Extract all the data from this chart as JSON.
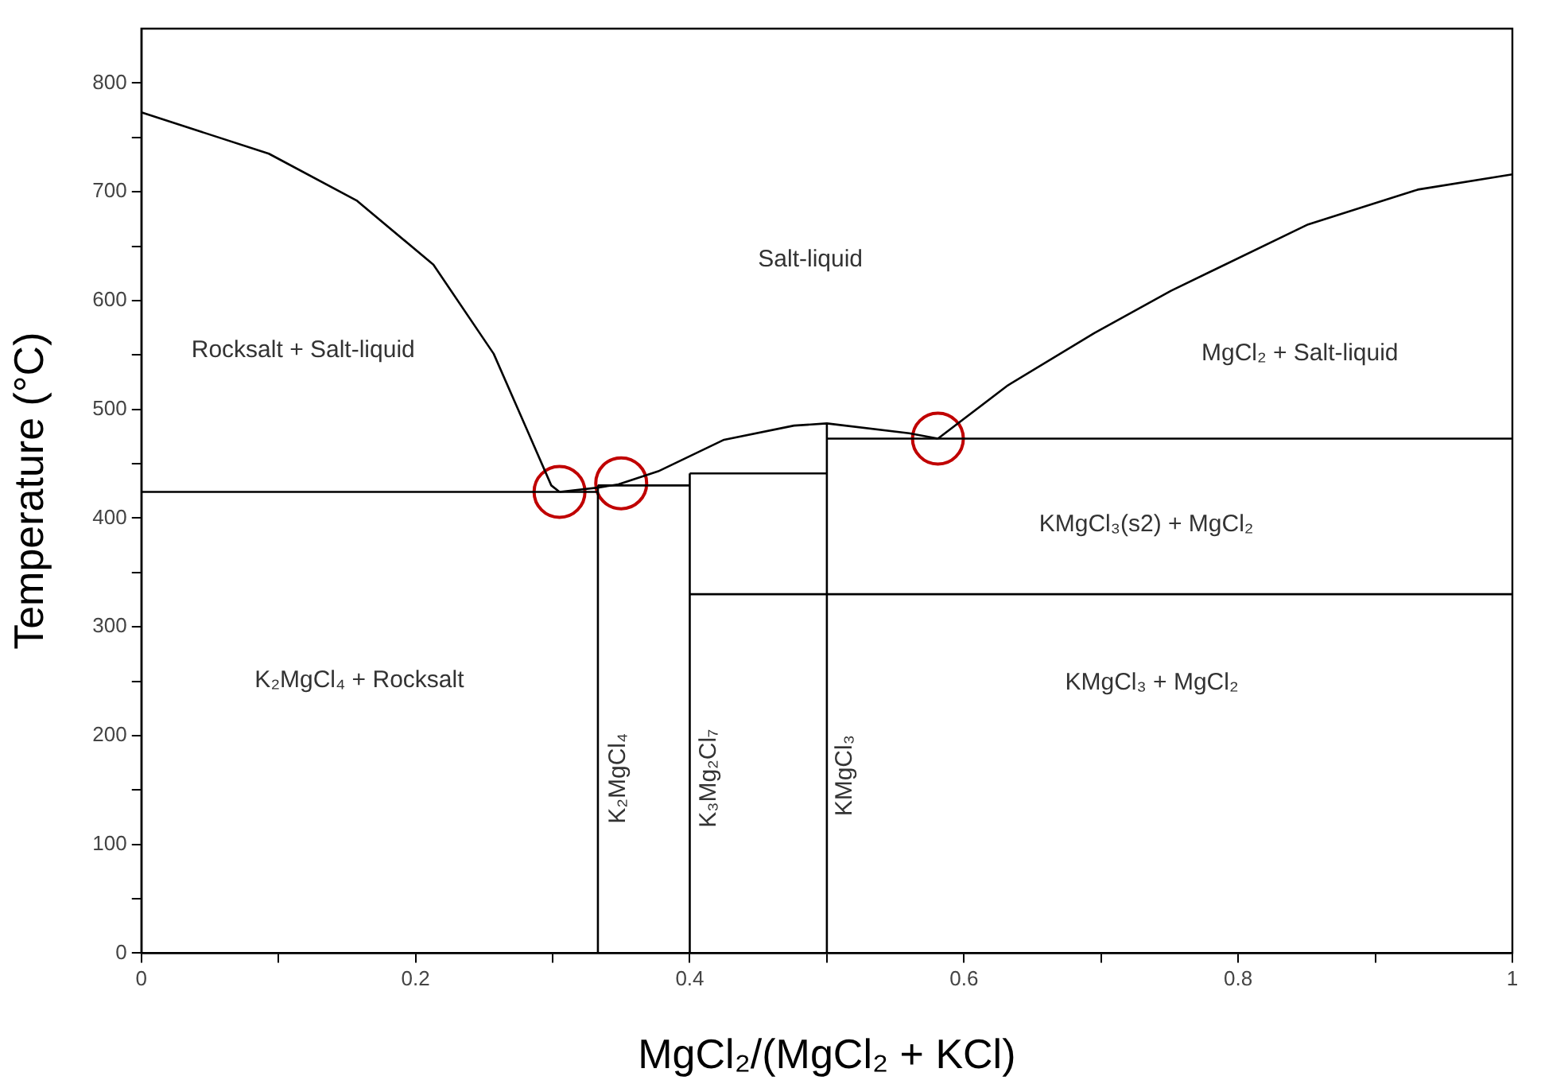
{
  "chart_data": {
    "type": "line",
    "xlabel": "MgCl₂/(MgCl₂ + KCl)",
    "ylabel": "Temperature (°C)",
    "xlim": [
      0,
      1
    ],
    "ylim": [
      0,
      850
    ],
    "xticks": [
      0,
      {
        "value": 0.1,
        "label": null
      },
      0.2,
      {
        "value": 0.3,
        "label": null
      },
      0.4,
      {
        "value": 0.5,
        "label": null
      },
      0.6,
      {
        "value": 0.7,
        "label": null
      },
      0.8,
      {
        "value": 0.9,
        "label": null
      },
      1
    ],
    "yticks": [
      0,
      {
        "value": 50,
        "label": null
      },
      100,
      {
        "value": 150,
        "label": null
      },
      200,
      {
        "value": 250,
        "label": null
      },
      300,
      {
        "value": 350,
        "label": null
      },
      400,
      {
        "value": 450,
        "label": null
      },
      500,
      {
        "value": 550,
        "label": null
      },
      600,
      {
        "value": 650,
        "label": null
      },
      700,
      {
        "value": 750,
        "label": null
      },
      800
    ],
    "grid": false,
    "legend": false,
    "marker": "none",
    "line_style": "solid",
    "series": [
      {
        "color": "#000000",
        "x": [
          0,
          0.093,
          0.157,
          0.213,
          0.257,
          0.281,
          0.299,
          0.305
        ],
        "values": [
          773,
          735,
          692,
          633,
          551,
          482,
          430,
          424
        ]
      },
      {
        "color": "#000000",
        "x": [
          0.305,
          0.333,
          0.348,
          0.377,
          0.425,
          0.476,
          0.5,
          0.56,
          0.581
        ],
        "values": [
          424,
          428,
          431,
          443,
          472,
          485,
          487,
          478,
          473
        ]
      },
      {
        "color": "#000000",
        "x": [
          0.581,
          0.632,
          0.695,
          0.751,
          0.851,
          0.931,
          1
        ],
        "values": [
          473,
          522,
          570,
          609,
          670,
          702,
          716
        ]
      },
      {
        "color": "#000000",
        "x": [
          0,
          0.333
        ],
        "values": [
          424,
          424
        ]
      },
      {
        "color": "#000000",
        "x": [
          0.333,
          0.4
        ],
        "values": [
          430,
          430
        ]
      },
      {
        "color": "#000000",
        "x": [
          0.4,
          0.5
        ],
        "values": [
          441,
          441
        ]
      },
      {
        "color": "#000000",
        "x": [
          0.5,
          1
        ],
        "values": [
          473,
          473
        ]
      },
      {
        "color": "#000000",
        "x": [
          0.4,
          1
        ],
        "values": [
          330,
          330
        ]
      },
      {
        "color": "#000000",
        "x": [
          0.333,
          0.333
        ],
        "values": [
          0,
          430
        ]
      },
      {
        "color": "#000000",
        "x": [
          0.4,
          0.4
        ],
        "values": [
          0,
          441
        ]
      },
      {
        "color": "#000000",
        "x": [
          0.5,
          0.5
        ],
        "values": [
          0,
          487
        ]
      },
      {
        "type": "scatter",
        "color": "#c00000",
        "marker": "circle",
        "x": [
          0.305,
          0.35,
          0.581
        ],
        "values": [
          424,
          432,
          473
        ]
      }
    ],
    "annotations": [
      "Salt-liquid",
      "Rocksalt + Salt-liquid",
      "MgCl₂ + Salt-liquid",
      "KMgCl₃(s2) + MgCl₂",
      "KMgCl₃ + MgCl₂",
      "K₂MgCl₄ + Rocksalt",
      "K₂MgCl₄",
      "K₃Mg₂Cl₇",
      "KMgCl₃"
    ]
  }
}
